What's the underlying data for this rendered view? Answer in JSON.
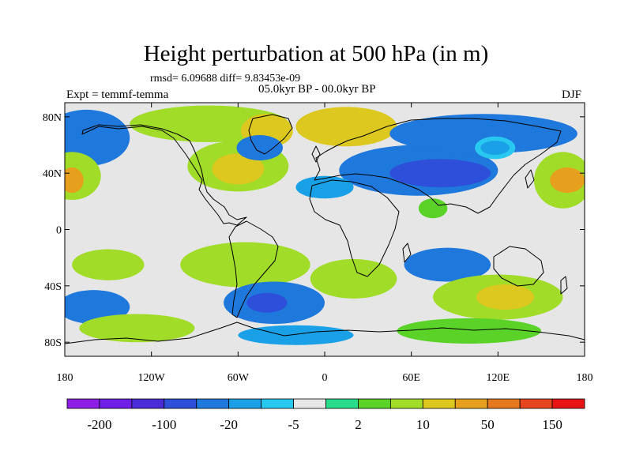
{
  "header": {
    "title": "Height perturbation at 500 hPa (in m)",
    "stats": "rmsd= 6.09688 diff= 9.83453e-09",
    "period": "05.0kyr BP - 00.0kyr BP",
    "experiment": "Expt = temmf-temma",
    "season": "DJF"
  },
  "map": {
    "projection": "cylindrical equidistant",
    "lon_range": [
      -180,
      180
    ],
    "lat_range": [
      -90,
      90
    ],
    "y_ticks": [
      {
        "lat": 80,
        "label": "80N"
      },
      {
        "lat": 40,
        "label": "40N"
      },
      {
        "lat": 0,
        "label": "0"
      },
      {
        "lat": -40,
        "label": "40S"
      },
      {
        "lat": -80,
        "label": "80S"
      }
    ],
    "x_ticks": [
      {
        "lon": -180,
        "label": "180"
      },
      {
        "lon": -120,
        "label": "120W"
      },
      {
        "lon": -60,
        "label": "60W"
      },
      {
        "lon": 0,
        "label": "0"
      },
      {
        "lon": 60,
        "label": "60E"
      },
      {
        "lon": 120,
        "label": "120E"
      },
      {
        "lon": 180,
        "label": "180"
      }
    ],
    "background_color": "#e6e6e6",
    "regions": [
      {
        "name": "n-pacific-blue",
        "lon": -165,
        "lat": 65,
        "rlon": 30,
        "rlat": 20,
        "level": 4
      },
      {
        "name": "arctic-canada-green",
        "lon": -80,
        "lat": 75,
        "rlon": 55,
        "rlat": 13,
        "level": 10
      },
      {
        "name": "greenland-yellow",
        "lon": -40,
        "lat": 70,
        "rlon": 18,
        "rlat": 12,
        "level": 11
      },
      {
        "name": "scandinavia-yellow",
        "lon": 15,
        "lat": 73,
        "rlon": 35,
        "rlat": 14,
        "level": 11
      },
      {
        "name": "n-atlantic-green",
        "lon": -60,
        "lat": 45,
        "rlon": 35,
        "rlat": 18,
        "level": 10
      },
      {
        "name": "n-atlantic-yellow",
        "lon": -60,
        "lat": 43,
        "rlon": 18,
        "rlat": 11,
        "level": 11
      },
      {
        "name": "w-pacific-green",
        "lon": -175,
        "lat": 38,
        "rlon": 20,
        "rlat": 17,
        "level": 10
      },
      {
        "name": "w-pacific-orange",
        "lon": -175,
        "lat": 35,
        "rlon": 8,
        "rlat": 9,
        "level": 12
      },
      {
        "name": "hudson-blue",
        "lon": -45,
        "lat": 58,
        "rlon": 16,
        "rlat": 9,
        "level": 4
      },
      {
        "name": "asia-blue",
        "lon": 65,
        "lat": 42,
        "rlon": 55,
        "rlat": 18,
        "level": 4
      },
      {
        "name": "asia-darkblue",
        "lon": 80,
        "lat": 40,
        "rlon": 35,
        "rlat": 10,
        "level": 3
      },
      {
        "name": "siberia-blue",
        "lon": 110,
        "lat": 68,
        "rlon": 65,
        "rlat": 14,
        "level": 4
      },
      {
        "name": "e-asia-white-ring",
        "lon": 118,
        "lat": 58,
        "rlon": 14,
        "rlat": 8,
        "level": 6
      },
      {
        "name": "e-asia-lightblue",
        "lon": 118,
        "lat": 58,
        "rlon": 10,
        "rlat": 5,
        "level": 5
      },
      {
        "name": "c-pacific-green",
        "lon": 165,
        "lat": 35,
        "rlon": 20,
        "rlat": 20,
        "level": 10
      },
      {
        "name": "c-pacific-orange",
        "lon": 168,
        "lat": 35,
        "rlon": 12,
        "rlat": 9,
        "level": 12
      },
      {
        "name": "sahara-lightblue",
        "lon": 0,
        "lat": 30,
        "rlon": 20,
        "rlat": 8,
        "level": 5
      },
      {
        "name": "india-green",
        "lon": 75,
        "lat": 15,
        "rlon": 10,
        "rlat": 7,
        "level": 9
      },
      {
        "name": "s-pacific-green",
        "lon": -150,
        "lat": -25,
        "rlon": 25,
        "rlat": 11,
        "level": 10
      },
      {
        "name": "s-america-green",
        "lon": -55,
        "lat": -25,
        "rlon": 45,
        "rlat": 16,
        "level": 10
      },
      {
        "name": "s-atlantic-green",
        "lon": 20,
        "lat": -35,
        "rlon": 30,
        "rlat": 14,
        "level": 10
      },
      {
        "name": "indian-ocean-blue",
        "lon": 85,
        "lat": -25,
        "rlon": 30,
        "rlat": 12,
        "level": 4
      },
      {
        "name": "s-indian-green",
        "lon": 120,
        "lat": -48,
        "rlon": 45,
        "rlat": 16,
        "level": 10
      },
      {
        "name": "s-indian-yellow",
        "lon": 125,
        "lat": -48,
        "rlon": 20,
        "rlat": 9,
        "level": 11
      },
      {
        "name": "s-atlantic-blue",
        "lon": -35,
        "lat": -52,
        "rlon": 35,
        "rlat": 15,
        "level": 4
      },
      {
        "name": "s-atlantic-darkblue",
        "lon": -40,
        "lat": -52,
        "rlon": 14,
        "rlat": 7,
        "level": 3
      },
      {
        "name": "southern-ocean-blue",
        "lon": -160,
        "lat": -55,
        "rlon": 25,
        "rlat": 12,
        "level": 4
      },
      {
        "name": "antarctic-green",
        "lon": -130,
        "lat": -70,
        "rlon": 40,
        "rlat": 10,
        "level": 10
      },
      {
        "name": "antarctic-lightgreen",
        "lon": 100,
        "lat": -72,
        "rlon": 50,
        "rlat": 9,
        "level": 9
      },
      {
        "name": "antarctic-blue",
        "lon": -20,
        "lat": -75,
        "rlon": 40,
        "rlat": 7,
        "level": 5
      }
    ]
  },
  "colorbar": {
    "colors": [
      "#8c1ee6",
      "#6e1ee6",
      "#4a2bd6",
      "#2e4fd9",
      "#1f78dc",
      "#1aa0e6",
      "#28c8f0",
      "#e6e6e6",
      "#28dc8c",
      "#5ad228",
      "#a0dc28",
      "#dcc81e",
      "#e6a01e",
      "#e6781e",
      "#e6461e",
      "#e61414"
    ],
    "labels": [
      "-200",
      "-100",
      "-20",
      "-5",
      "2",
      "10",
      "50",
      "150"
    ]
  }
}
